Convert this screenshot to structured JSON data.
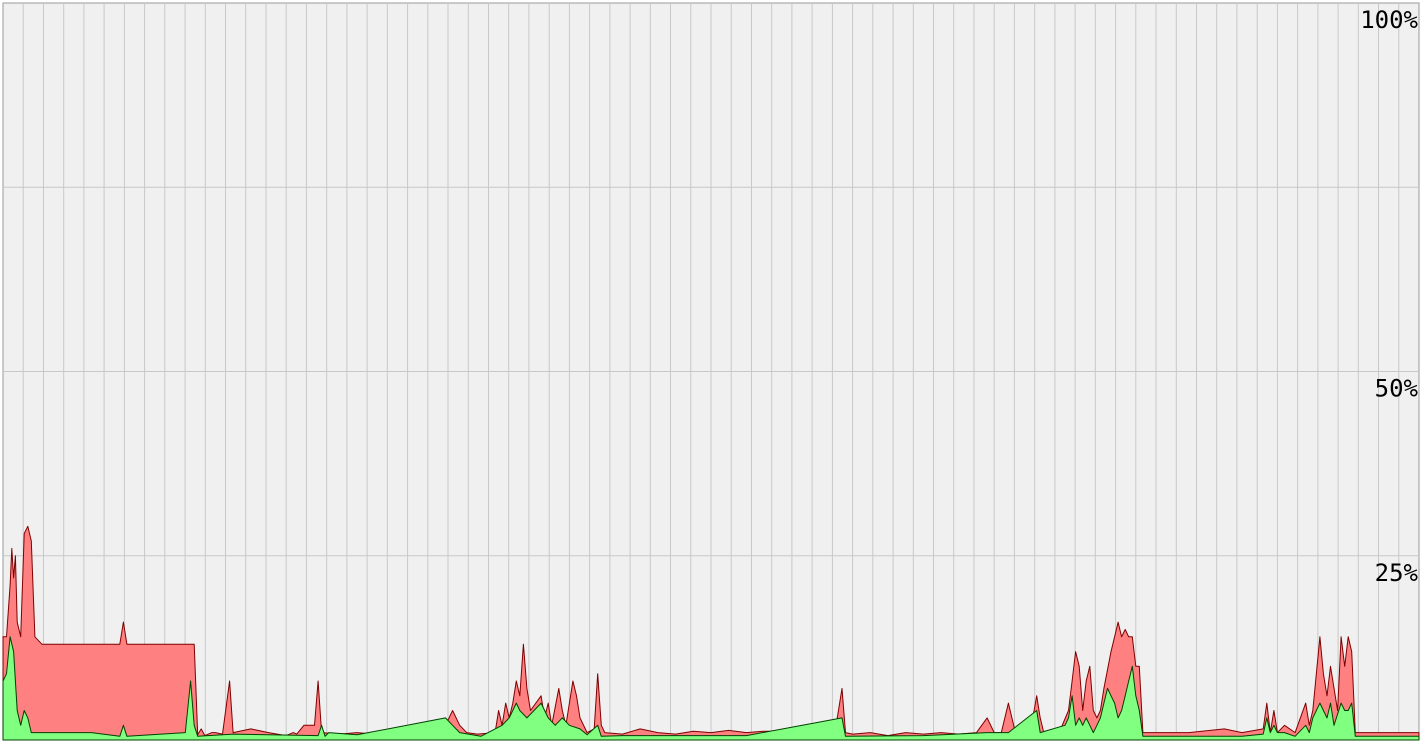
{
  "chart_data": {
    "type": "area",
    "ylim": [
      0,
      100
    ],
    "y_tick_labels": [
      "100%",
      "50%",
      "25%"
    ],
    "y_tick_values": [
      100,
      50,
      25
    ],
    "grid": true,
    "vertical_gridlines": 70,
    "x_samples": 284,
    "series": [
      {
        "color": "#ff8080",
        "stroke": "#800000",
        "values": [
          [
            0,
            14
          ],
          [
            2,
            14
          ],
          [
            4,
            21
          ],
          [
            5,
            26
          ],
          [
            6,
            22
          ],
          [
            7,
            25
          ],
          [
            8,
            16
          ],
          [
            10,
            14
          ],
          [
            12,
            28
          ],
          [
            14,
            29
          ],
          [
            16,
            27
          ],
          [
            18,
            14
          ],
          [
            22,
            13
          ],
          [
            50,
            13
          ],
          [
            60,
            13
          ],
          [
            66,
            13
          ],
          [
            68,
            16
          ],
          [
            70,
            13
          ],
          [
            103,
            13
          ],
          [
            108,
            13
          ],
          [
            110,
            0.7
          ],
          [
            112,
            1.5
          ],
          [
            114,
            0.6
          ],
          [
            118,
            1
          ],
          [
            120,
            1
          ],
          [
            124,
            0.8
          ],
          [
            128,
            8
          ],
          [
            130,
            1
          ],
          [
            140,
            1.5
          ],
          [
            150,
            1
          ],
          [
            160,
            0.6
          ],
          [
            164,
            1
          ],
          [
            166,
            0.8
          ],
          [
            170,
            2
          ],
          [
            176,
            2
          ],
          [
            178,
            8
          ],
          [
            180,
            1
          ],
          [
            190,
            0.8
          ],
          [
            200,
            1
          ],
          [
            210,
            0.8
          ],
          [
            215,
            1.2
          ],
          [
            220,
            0.8
          ],
          [
            230,
            1
          ],
          [
            240,
            0.8
          ],
          [
            250,
            2
          ],
          [
            254,
            4
          ],
          [
            256,
            3
          ],
          [
            258,
            2
          ],
          [
            262,
            1
          ],
          [
            268,
            0.8
          ],
          [
            278,
            1
          ],
          [
            280,
            4
          ],
          [
            282,
            2
          ],
          [
            284,
            5
          ],
          [
            286,
            3
          ],
          [
            288,
            5
          ],
          [
            290,
            8
          ],
          [
            292,
            6
          ],
          [
            294,
            13
          ],
          [
            296,
            7
          ],
          [
            298,
            4
          ],
          [
            304,
            6
          ],
          [
            306,
            3
          ],
          [
            308,
            5
          ],
          [
            310,
            2
          ],
          [
            314,
            7
          ],
          [
            316,
            4
          ],
          [
            318,
            2
          ],
          [
            320,
            5
          ],
          [
            322,
            8
          ],
          [
            324,
            6
          ],
          [
            326,
            3
          ],
          [
            330,
            1
          ],
          [
            334,
            1.5
          ],
          [
            336,
            9
          ],
          [
            338,
            2
          ],
          [
            340,
            1
          ],
          [
            350,
            0.8
          ],
          [
            360,
            1.5
          ],
          [
            370,
            1
          ],
          [
            380,
            0.8
          ],
          [
            390,
            1.2
          ],
          [
            400,
            1
          ],
          [
            410,
            1.3
          ],
          [
            420,
            1
          ],
          [
            430,
            1.2
          ],
          [
            440,
            1.2
          ],
          [
            450,
            1
          ],
          [
            460,
            1
          ],
          [
            470,
            1
          ],
          [
            474,
            7
          ],
          [
            476,
            1
          ],
          [
            480,
            0.8
          ],
          [
            490,
            1
          ],
          [
            500,
            0.6
          ],
          [
            510,
            1
          ],
          [
            520,
            0.8
          ],
          [
            530,
            1
          ],
          [
            540,
            0.8
          ],
          [
            550,
            1
          ],
          [
            556,
            3
          ],
          [
            560,
            1
          ],
          [
            564,
            1
          ],
          [
            568,
            5
          ],
          [
            570,
            3
          ],
          [
            572,
            1
          ],
          [
            580,
            0.6
          ],
          [
            584,
            6
          ],
          [
            586,
            3
          ],
          [
            588,
            1
          ],
          [
            596,
            0.6
          ],
          [
            602,
            4
          ],
          [
            604,
            8
          ],
          [
            606,
            12
          ],
          [
            608,
            10
          ],
          [
            610,
            4
          ],
          [
            612,
            8
          ],
          [
            614,
            10
          ],
          [
            616,
            4
          ],
          [
            618,
            3
          ],
          [
            620,
            4
          ],
          [
            622,
            7
          ],
          [
            626,
            12
          ],
          [
            628,
            14
          ],
          [
            630,
            16
          ],
          [
            632,
            14
          ],
          [
            634,
            15
          ],
          [
            636,
            14
          ],
          [
            638,
            14
          ],
          [
            640,
            10
          ],
          [
            642,
            10
          ],
          [
            644,
            1
          ],
          [
            650,
            1
          ],
          [
            660,
            1
          ],
          [
            670,
            1
          ],
          [
            690,
            1.5
          ],
          [
            700,
            1
          ],
          [
            712,
            1.5
          ],
          [
            714,
            5
          ],
          [
            716,
            1
          ],
          [
            718,
            4
          ],
          [
            720,
            1
          ],
          [
            724,
            2
          ],
          [
            730,
            1
          ],
          [
            736,
            5
          ],
          [
            738,
            2
          ],
          [
            740,
            4
          ],
          [
            744,
            14
          ],
          [
            746,
            9
          ],
          [
            748,
            6
          ],
          [
            750,
            10
          ],
          [
            754,
            4
          ],
          [
            756,
            14
          ],
          [
            758,
            10
          ],
          [
            760,
            14
          ],
          [
            762,
            12
          ],
          [
            764,
            1
          ],
          [
            770,
            1
          ],
          [
            784,
            1
          ],
          [
            794,
            1
          ],
          [
            800,
            1
          ]
        ]
      },
      {
        "color": "#80ff80",
        "stroke": "#004000",
        "values": [
          [
            0,
            8
          ],
          [
            2,
            9
          ],
          [
            4,
            14
          ],
          [
            6,
            12
          ],
          [
            8,
            4
          ],
          [
            10,
            2
          ],
          [
            12,
            4
          ],
          [
            14,
            3
          ],
          [
            16,
            1
          ],
          [
            30,
            1
          ],
          [
            50,
            1
          ],
          [
            66,
            0.5
          ],
          [
            68,
            2
          ],
          [
            70,
            0.5
          ],
          [
            103,
            1
          ],
          [
            106,
            8
          ],
          [
            108,
            2
          ],
          [
            110,
            0.5
          ],
          [
            130,
            0.8
          ],
          [
            178,
            0.6
          ],
          [
            180,
            2
          ],
          [
            182,
            0.5
          ],
          [
            184,
            1
          ],
          [
            200,
            0.7
          ],
          [
            250,
            3
          ],
          [
            254,
            2
          ],
          [
            258,
            1
          ],
          [
            270,
            0.5
          ],
          [
            282,
            2
          ],
          [
            286,
            3
          ],
          [
            288,
            4
          ],
          [
            290,
            5
          ],
          [
            292,
            4
          ],
          [
            296,
            3
          ],
          [
            300,
            4
          ],
          [
            304,
            5
          ],
          [
            308,
            3
          ],
          [
            312,
            2
          ],
          [
            316,
            3
          ],
          [
            320,
            2
          ],
          [
            326,
            1.5
          ],
          [
            330,
            0.7
          ],
          [
            336,
            2
          ],
          [
            338,
            0.5
          ],
          [
            350,
            0.6
          ],
          [
            380,
            0.6
          ],
          [
            420,
            0.6
          ],
          [
            474,
            3
          ],
          [
            476,
            0.5
          ],
          [
            520,
            0.6
          ],
          [
            556,
            1
          ],
          [
            568,
            1
          ],
          [
            584,
            4
          ],
          [
            586,
            1
          ],
          [
            600,
            2
          ],
          [
            602,
            3
          ],
          [
            604,
            6
          ],
          [
            606,
            2
          ],
          [
            608,
            3
          ],
          [
            610,
            2
          ],
          [
            612,
            3
          ],
          [
            614,
            2
          ],
          [
            616,
            1
          ],
          [
            618,
            2
          ],
          [
            620,
            3
          ],
          [
            622,
            5
          ],
          [
            624,
            7
          ],
          [
            626,
            6
          ],
          [
            628,
            5
          ],
          [
            630,
            3
          ],
          [
            632,
            4
          ],
          [
            634,
            6
          ],
          [
            636,
            8
          ],
          [
            638,
            10
          ],
          [
            640,
            6
          ],
          [
            642,
            4
          ],
          [
            644,
            0.5
          ],
          [
            650,
            0.5
          ],
          [
            700,
            0.5
          ],
          [
            712,
            0.8
          ],
          [
            714,
            3
          ],
          [
            716,
            1
          ],
          [
            718,
            2
          ],
          [
            720,
            1
          ],
          [
            724,
            1
          ],
          [
            730,
            0.5
          ],
          [
            736,
            2
          ],
          [
            738,
            1
          ],
          [
            740,
            3
          ],
          [
            744,
            5
          ],
          [
            746,
            4
          ],
          [
            748,
            3
          ],
          [
            750,
            5
          ],
          [
            752,
            2
          ],
          [
            756,
            5
          ],
          [
            758,
            4
          ],
          [
            760,
            4
          ],
          [
            762,
            5
          ],
          [
            764,
            0.5
          ],
          [
            800,
            0.5
          ]
        ]
      }
    ]
  }
}
